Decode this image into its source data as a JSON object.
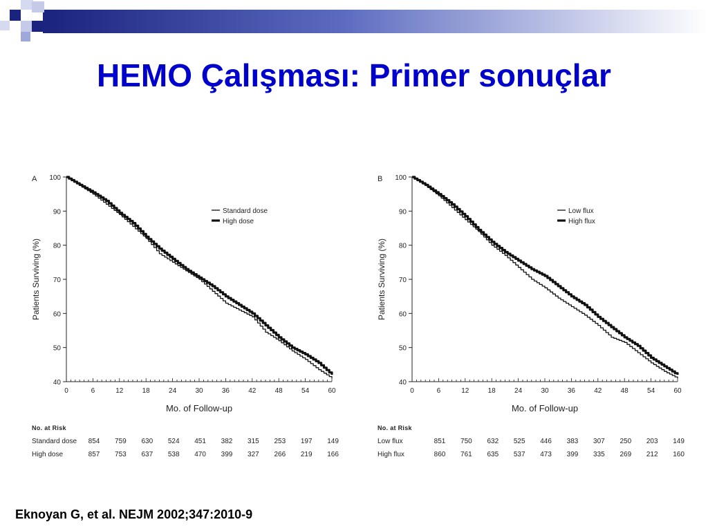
{
  "slide": {
    "title": "HEMO Çalışması: Primer sonuçlar",
    "citation": "Eknoyan G, et al. NEJM 2002;347:2010-9",
    "title_color": "#0000cc"
  },
  "chart_data": [
    {
      "type": "line",
      "panel_label": "A",
      "title": "",
      "xlabel": "Mo. of Follow-up",
      "ylabel": "Patients Surviving (%)",
      "xlim": [
        0,
        60
      ],
      "ylim": [
        40,
        100
      ],
      "xticks": [
        0,
        6,
        12,
        18,
        24,
        30,
        36,
        42,
        48,
        54,
        60
      ],
      "yticks": [
        40,
        50,
        60,
        70,
        80,
        90,
        100
      ],
      "legend_position": "top-right",
      "grid": false,
      "series": [
        {
          "name": "Standard dose",
          "style": "thin",
          "x": [
            0,
            3,
            6,
            9,
            12,
            15,
            18,
            21,
            24,
            27,
            30,
            33,
            36,
            39,
            42,
            45,
            48,
            51,
            54,
            57,
            60
          ],
          "y": [
            100,
            97.5,
            95,
            92,
            89,
            85.5,
            82,
            77.5,
            75,
            72.5,
            70,
            66.5,
            63,
            61,
            59,
            54.5,
            52,
            49,
            46.5,
            43.5,
            41
          ]
        },
        {
          "name": "High dose",
          "style": "thick",
          "x": [
            0,
            3,
            6,
            9,
            12,
            15,
            18,
            21,
            24,
            27,
            30,
            33,
            36,
            39,
            42,
            45,
            48,
            51,
            54,
            57,
            60
          ],
          "y": [
            100,
            97.7,
            95.5,
            93,
            89.5,
            86.5,
            82.5,
            79,
            76,
            73,
            70.5,
            68,
            65,
            62.5,
            60,
            56.5,
            53,
            50,
            48,
            45.5,
            42
          ]
        }
      ],
      "at_risk": {
        "header": "No. at Risk",
        "rows": [
          {
            "label": "Standard dose",
            "values": [
              854,
              759,
              630,
              524,
              451,
              382,
              315,
              253,
              197,
              149
            ]
          },
          {
            "label": "High dose",
            "values": [
              857,
              753,
              637,
              538,
              470,
              399,
              327,
              266,
              219,
              166
            ]
          }
        ]
      }
    },
    {
      "type": "line",
      "panel_label": "B",
      "title": "",
      "xlabel": "Mo. of Follow-up",
      "ylabel": "Patients Surviving (%)",
      "xlim": [
        0,
        60
      ],
      "ylim": [
        40,
        100
      ],
      "xticks": [
        0,
        6,
        12,
        18,
        24,
        30,
        36,
        42,
        48,
        54,
        60
      ],
      "yticks": [
        40,
        50,
        60,
        70,
        80,
        90,
        100
      ],
      "legend_position": "top-right",
      "grid": false,
      "series": [
        {
          "name": "Low flux",
          "style": "thin",
          "x": [
            0,
            3,
            6,
            9,
            12,
            15,
            18,
            21,
            24,
            27,
            30,
            33,
            36,
            39,
            42,
            45,
            48,
            51,
            54,
            57,
            60
          ],
          "y": [
            100,
            97.5,
            94.5,
            91,
            87.5,
            84,
            80,
            77,
            73.5,
            70,
            67.5,
            64.5,
            62,
            59.5,
            56.5,
            53,
            51.5,
            48.5,
            45.5,
            43,
            41
          ]
        },
        {
          "name": "High flux",
          "style": "thick",
          "x": [
            0,
            3,
            6,
            9,
            12,
            15,
            18,
            21,
            24,
            27,
            30,
            33,
            36,
            39,
            42,
            45,
            48,
            51,
            54,
            57,
            60
          ],
          "y": [
            100,
            97.7,
            95,
            92,
            88.5,
            84.5,
            81,
            78,
            75.5,
            73,
            71,
            68,
            65,
            62.5,
            59,
            56,
            53,
            50.5,
            47,
            44.5,
            42
          ]
        }
      ],
      "at_risk": {
        "header": "No. at Risk",
        "rows": [
          {
            "label": "Low flux",
            "values": [
              851,
              750,
              632,
              525,
              446,
              383,
              307,
              250,
              203,
              149
            ]
          },
          {
            "label": "High flux",
            "values": [
              860,
              761,
              635,
              537,
              473,
              399,
              335,
              269,
              212,
              160
            ]
          }
        ]
      }
    }
  ]
}
